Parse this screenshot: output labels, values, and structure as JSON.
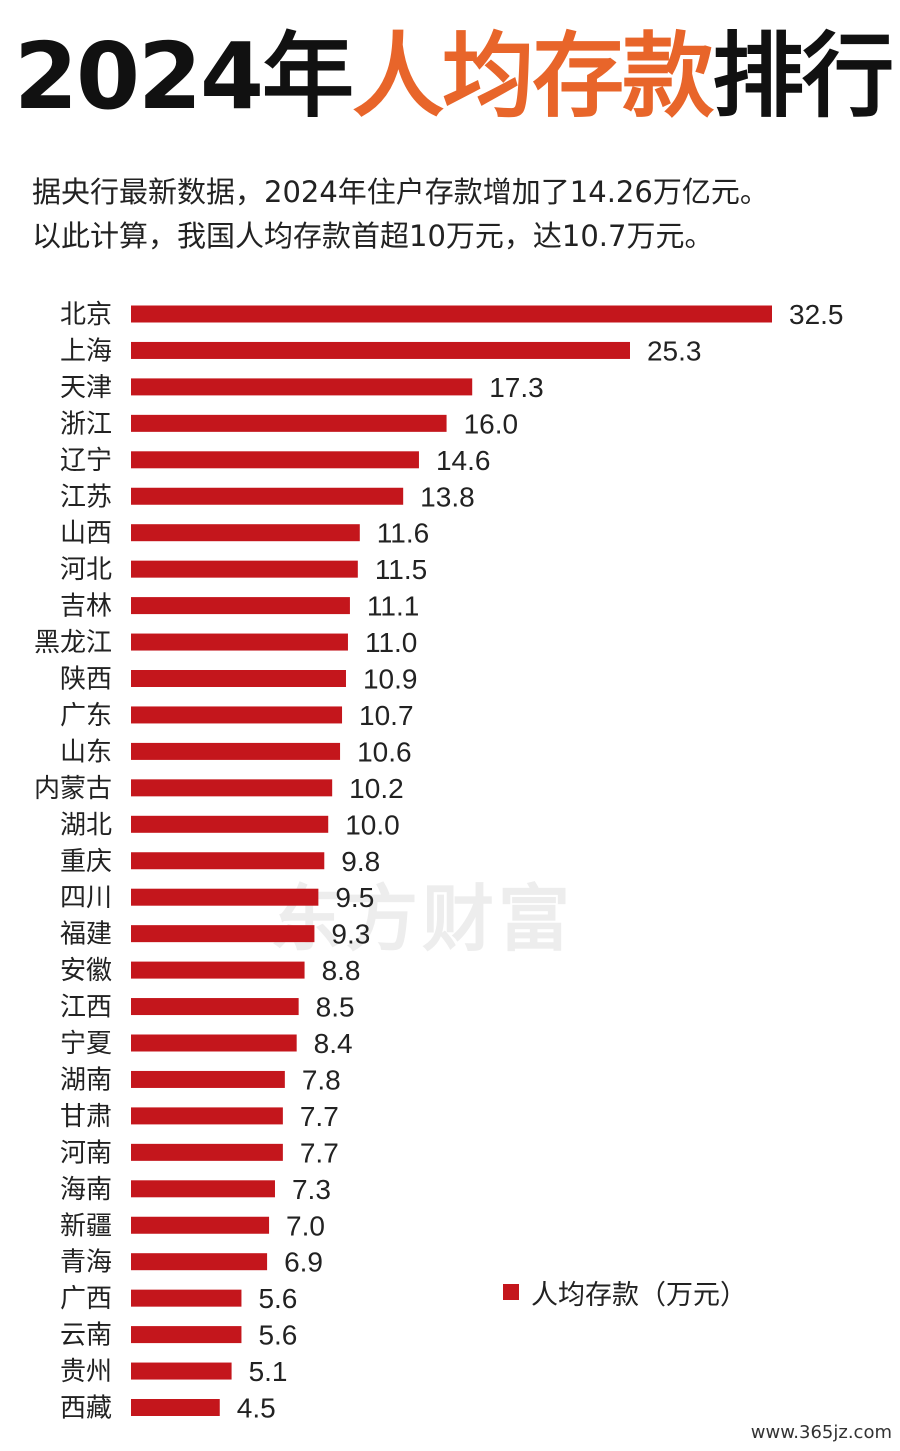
{
  "title": {
    "prefix": "2024年",
    "highlight": "人均存款",
    "suffix": "排行"
  },
  "subtitle": {
    "line1": "据央行最新数据，2024年住户存款增加了14.26万亿元。",
    "line2": "以此计算，我国人均存款首超10万元，达10.7万元。"
  },
  "watermark": "东方财富",
  "site": "www.365jz.com",
  "colors": {
    "bar": "#c4161c",
    "title_highlight": "#e8652a",
    "text": "#222222"
  },
  "chart_data": {
    "type": "bar",
    "orientation": "horizontal",
    "categories": [
      "北京",
      "上海",
      "天津",
      "浙江",
      "辽宁",
      "江苏",
      "山西",
      "河北",
      "吉林",
      "黑龙江",
      "陕西",
      "广东",
      "山东",
      "内蒙古",
      "湖北",
      "重庆",
      "四川",
      "福建",
      "安徽",
      "江西",
      "宁夏",
      "湖南",
      "甘肃",
      "河南",
      "海南",
      "新疆",
      "青海",
      "广西",
      "云南",
      "贵州",
      "西藏"
    ],
    "series": [
      {
        "name": "人均存款（万元）",
        "values": [
          32.5,
          25.3,
          17.3,
          16.0,
          14.6,
          13.8,
          11.6,
          11.5,
          11.1,
          11.0,
          10.9,
          10.7,
          10.6,
          10.2,
          10.0,
          9.8,
          9.5,
          9.3,
          8.8,
          8.5,
          8.4,
          7.8,
          7.7,
          7.7,
          7.3,
          7.0,
          6.9,
          5.6,
          5.6,
          5.1,
          4.5
        ]
      }
    ],
    "data_labels": [
      "32.5",
      "25.3",
      "17.3",
      "16.0",
      "14.6",
      "13.8",
      "11.6",
      "11.5",
      "11.1",
      "11.0",
      "10.9",
      "10.7",
      "10.6",
      "10.2",
      "10.0",
      "9.8",
      "9.5",
      "9.3",
      "8.8",
      "8.5",
      "8.4",
      "7.8",
      "7.7",
      "7.7",
      "7.3",
      "7.0",
      "6.9",
      "5.6",
      "5.6",
      "5.1",
      "4.5"
    ],
    "xlim": [
      0,
      32.5
    ],
    "legend": {
      "label": "人均存款（万元）",
      "placement": "bottom-right"
    },
    "grid": false,
    "axes_visible": false
  }
}
